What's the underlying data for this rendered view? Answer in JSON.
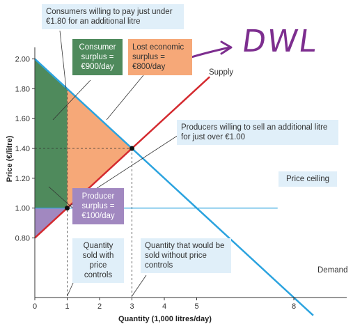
{
  "chart_data": {
    "type": "line",
    "title": "",
    "xlabel": "Quantity (1,000 litres/day)",
    "ylabel": "Price (€/litre)",
    "xlim": [
      0,
      9
    ],
    "ylim": [
      0.4,
      2.08
    ],
    "x_ticks": [
      0,
      1,
      2,
      3,
      4,
      5,
      8
    ],
    "x_tick_labels": [
      "0",
      "1",
      "2",
      "3",
      "4",
      "5",
      "8"
    ],
    "y_ticks": [
      0.8,
      1.0,
      1.2,
      1.4,
      1.6,
      1.8,
      2.0
    ],
    "y_tick_labels": [
      "0.80",
      "1.00",
      "1.20",
      "1.40",
      "1.60",
      "1.80",
      "2.00"
    ],
    "series": [
      {
        "name": "Supply",
        "x": [
          0,
          5.4
        ],
        "y": [
          0.8,
          1.88
        ],
        "color": "#d42a2f"
      },
      {
        "name": "Demand",
        "x": [
          0,
          8.6
        ],
        "y": [
          2.0,
          0.28
        ],
        "color": "#2ba3df"
      }
    ],
    "price_ceiling": {
      "label": "Price ceiling",
      "y": 1.0,
      "color": "#2ba3df"
    },
    "equilibrium": {
      "x": 3,
      "y": 1.4
    },
    "ceiling_point": {
      "x": 1,
      "y": 1.0
    },
    "regions": {
      "consumer_surplus": {
        "color": "#4f8a5c"
      },
      "lost_economic_surplus": {
        "color": "#f6a878"
      },
      "producer_surplus": {
        "color": "#a188c0"
      }
    }
  },
  "labels": {
    "consumers_willing": "Consumers willing to pay just under €1.80 for an additional litre",
    "consumer_surplus": "Consumer surplus = €900/day",
    "lost_surplus": "Lost economic surplus = €800/day",
    "producers_willing": "Producers willing to sell an additional litre for just over €1.00",
    "price_ceiling": "Price ceiling",
    "producer_surplus": "Producer surplus = €100/day",
    "qty_with_controls": "Quantity sold with price controls",
    "qty_without_controls": "Quantity that would be sold without price controls",
    "supply": "Supply",
    "demand": "Demand",
    "dwl": "DWL"
  }
}
